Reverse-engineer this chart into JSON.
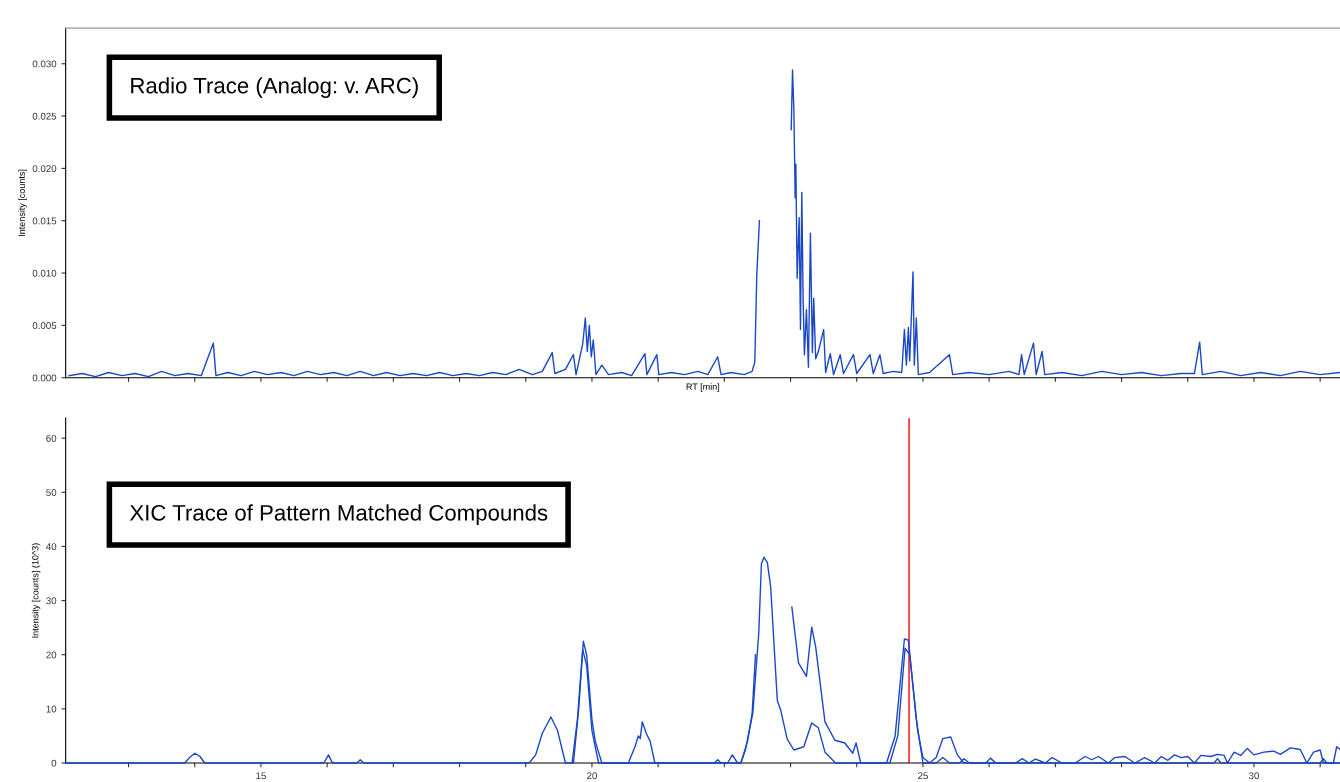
{
  "chart_data": [
    {
      "type": "line",
      "xlabel": "RT [min]",
      "ylabel": "Intensity [counts]",
      "annotations": [
        "Radio Trace (Analog: v. ARC)"
      ],
      "xlim": [
        12.05,
        31.3
      ],
      "ylim": [
        0,
        0.0334
      ],
      "tick_labels": "y",
      "grid": false,
      "legend": false,
      "xticks": [
        13,
        14,
        15,
        16,
        17,
        18,
        19,
        20,
        21,
        22,
        23,
        24,
        25,
        26,
        27,
        28,
        29,
        30,
        31
      ],
      "yticks": [
        {
          "value": 0,
          "label": "0.000"
        },
        {
          "value": 0.005,
          "label": "0.005"
        },
        {
          "value": 0.01,
          "label": "0.010"
        },
        {
          "value": 0.015,
          "label": "0.015"
        },
        {
          "value": 0.02,
          "label": "0.020"
        },
        {
          "value": 0.025,
          "label": "0.025"
        },
        {
          "value": 0.03,
          "label": "0.030"
        }
      ],
      "series": [
        {
          "color": "#1a47c6",
          "x": [
            12.1,
            12.3,
            12.5,
            12.7,
            12.9,
            13.1,
            13.3,
            13.5,
            13.7,
            13.9,
            14.1,
            14.28,
            14.32,
            14.5,
            14.7,
            14.9,
            15.1,
            15.3,
            15.5,
            15.7,
            15.9,
            16.1,
            16.3,
            16.5,
            16.7,
            16.9,
            17.1,
            17.3,
            17.5,
            17.7,
            17.9,
            18.1,
            18.3,
            18.5,
            18.7,
            18.9,
            19.1,
            19.25,
            19.4,
            19.44,
            19.6,
            19.72,
            19.76,
            19.86,
            19.9,
            19.93,
            19.96,
            19.99,
            20.02,
            20.06,
            20.15,
            20.25,
            20.45,
            20.6,
            20.8,
            20.83,
            20.98,
            21.01,
            21.2,
            21.4,
            21.6,
            21.75,
            21.9,
            21.95,
            22.1,
            22.3,
            22.42,
            22.46,
            22.49,
            22.53,
            22.56,
            23.0,
            23.01,
            23.03,
            23.05,
            23.07,
            23.08,
            23.1,
            23.13,
            23.15,
            23.17,
            23.19,
            23.21,
            23.24,
            23.27,
            23.3,
            23.33,
            23.35,
            23.38,
            23.42,
            23.5,
            23.53,
            23.6,
            23.65,
            23.75,
            23.8,
            23.95,
            24.0,
            24.2,
            24.25,
            24.35,
            24.4,
            24.55,
            24.68,
            24.72,
            24.75,
            24.78,
            24.8,
            24.85,
            24.87,
            24.9,
            24.93,
            25.1,
            25.4,
            25.45,
            25.7,
            26.0,
            26.3,
            26.45,
            26.49,
            26.53,
            26.67,
            26.71,
            26.8,
            26.84,
            27.1,
            27.4,
            27.7,
            28.0,
            28.3,
            28.6,
            28.9,
            29.1,
            29.18,
            29.22,
            29.5,
            29.8,
            30.1,
            30.4,
            30.7,
            31.0,
            31.3
          ],
          "values": [
            0.0002,
            0.0004,
            0.0001,
            0.0005,
            0.0002,
            0.0004,
            0.0001,
            0.0006,
            0.0002,
            0.0004,
            0.0002,
            0.0033,
            0.0002,
            0.0005,
            0.0002,
            0.0006,
            0.0003,
            0.0005,
            0.0002,
            0.0006,
            0.0003,
            0.0005,
            0.0002,
            0.0006,
            0.0002,
            0.0005,
            0.0002,
            0.0004,
            0.0002,
            0.0005,
            0.0002,
            0.0004,
            0.0002,
            0.0005,
            0.0003,
            0.0008,
            0.0003,
            0.0006,
            0.0024,
            0.0004,
            0.0008,
            0.0022,
            0.0003,
            0.0032,
            0.0057,
            0.0025,
            0.005,
            0.002,
            0.0036,
            0.0003,
            0.0012,
            0.0003,
            0.0005,
            0.0002,
            0.0023,
            0.0003,
            0.0022,
            0.0003,
            0.0005,
            0.0003,
            0.0006,
            0.0003,
            0.002,
            0.0003,
            0.0005,
            0.0003,
            0.0006,
            0.0015,
            0.0098,
            0.015,
            null,
            null,
            0.0237,
            0.0294,
            0.0256,
            0.0172,
            0.0204,
            0.0095,
            0.0153,
            0.0046,
            0.0177,
            0.0075,
            0.0022,
            0.0065,
            0.001,
            0.0138,
            0.0024,
            0.0076,
            0.0018,
            0.0025,
            0.0046,
            0.0005,
            0.0023,
            0.0003,
            0.0022,
            0.0004,
            0.0022,
            0.0004,
            0.0022,
            0.0004,
            0.0022,
            0.0004,
            0.0006,
            0.0005,
            0.0046,
            0.0012,
            0.0048,
            0.0016,
            0.0101,
            0.0012,
            0.0057,
            0.0003,
            0.0005,
            0.0022,
            0.0003,
            0.0005,
            0.0003,
            0.0006,
            0.0003,
            0.0022,
            0.0003,
            0.0033,
            0.0003,
            0.0025,
            0.0003,
            0.0005,
            0.0002,
            0.0006,
            0.0003,
            0.0005,
            0.0002,
            0.0004,
            0.0004,
            0.0034,
            0.0003,
            0.0006,
            0.0002,
            0.0005,
            0.0002,
            0.0006,
            0.0003,
            0.0005
          ]
        }
      ]
    },
    {
      "type": "line",
      "ylabel": "Intensity [counts] (10^3)",
      "annotations": [
        "XIC Trace of Pattern Matched Compounds"
      ],
      "xlim": [
        12.05,
        31.3
      ],
      "ylim": [
        0,
        63.7
      ],
      "grid": false,
      "legend": false,
      "xticks": [
        {
          "value": 13,
          "label": null
        },
        {
          "value": 14,
          "label": null
        },
        15,
        {
          "value": 16,
          "label": null
        },
        {
          "value": 17,
          "label": null
        },
        {
          "value": 18,
          "label": null
        },
        {
          "value": 19,
          "label": null
        },
        20,
        {
          "value": 21,
          "label": null
        },
        {
          "value": 22,
          "label": null
        },
        {
          "value": 23,
          "label": null
        },
        {
          "value": 24,
          "label": null
        },
        25,
        {
          "value": 26,
          "label": null
        },
        {
          "value": 27,
          "label": null
        },
        {
          "value": 28,
          "label": null
        },
        {
          "value": 29,
          "label": null
        },
        30,
        {
          "value": 31,
          "label": null
        }
      ],
      "yticks": [
        0,
        10,
        20,
        30,
        40,
        50,
        60
      ],
      "ref_lines": [
        {
          "axis": "x",
          "value": 24.79,
          "color": "#ff0000"
        }
      ],
      "series": [
        {
          "color": "#1a47c6",
          "x": [
            12.05,
            13.85,
            13.92,
            14.0,
            14.08,
            14.15,
            15.95,
            16.02,
            16.08,
            16.45,
            16.5,
            16.55,
            19.05,
            19.15,
            19.25,
            19.38,
            19.48,
            19.6,
            19.72,
            19.8,
            19.87,
            19.92,
            20.0,
            20.05,
            20.15,
            20.55,
            20.65,
            20.7,
            20.73,
            20.76,
            20.82,
            20.88,
            20.95,
            21.85,
            21.9,
            21.95,
            22.05,
            22.12,
            22.2,
            22.25,
            22.35,
            22.42,
            22.47,
            22.52,
            22.96,
            23.02,
            23.12,
            23.24,
            23.32,
            23.38,
            23.52,
            23.67,
            23.82,
            23.94,
            23.99,
            24.06,
            24.45,
            24.58,
            24.72,
            24.78,
            24.9,
            25.0,
            25.2,
            25.3,
            25.4,
            25.55,
            25.62,
            25.7,
            25.95,
            26.02,
            26.1,
            26.4,
            26.5,
            26.6,
            26.7,
            26.85,
            26.95,
            27.1,
            27.3,
            27.45,
            27.55,
            27.65,
            27.8,
            27.9,
            28.05,
            28.2,
            28.35,
            28.5,
            28.6,
            28.7,
            28.8,
            28.9,
            29.0,
            29.1,
            29.2,
            29.35,
            29.45,
            29.55,
            29.6,
            29.7,
            29.8,
            29.9,
            30.0,
            30.15,
            30.3,
            30.4,
            30.55,
            30.7,
            30.8,
            30.9,
            31.0,
            31.05,
            31.2,
            31.25,
            31.3
          ],
          "values": [
            0,
            0,
            1.0,
            1.8,
            1.2,
            0,
            0,
            1.5,
            0,
            0,
            0.6,
            0,
            0,
            1.5,
            5.5,
            8.5,
            6,
            0,
            0,
            10,
            22.5,
            20,
            8,
            4,
            0,
            0,
            3,
            5,
            4.5,
            7.6,
            5.5,
            4,
            0,
            0,
            0.6,
            0,
            0,
            1.5,
            0,
            0,
            4,
            9.2,
            20,
            null,
            null,
            28.8,
            18.5,
            16,
            25.1,
            21.4,
            7.6,
            4.2,
            3.7,
            1.8,
            3.7,
            0,
            0,
            5,
            22.9,
            22.7,
            8,
            0,
            0,
            1,
            0,
            0,
            0.8,
            0,
            0,
            0.9,
            0,
            0,
            0.8,
            0,
            0.7,
            0,
            1.0,
            0,
            0,
            1.2,
            0.6,
            1.2,
            0,
            1.0,
            1.2,
            0,
            1.0,
            0,
            1.2,
            0.5,
            1.5,
            1.0,
            1.2,
            0,
            1.4,
            1.2,
            1.6,
            1.4,
            0,
            2.0,
            1.4,
            2.7,
            1.5,
            2.0,
            2.2,
            1.6,
            2.8,
            2.5,
            0,
            2.0,
            2.4,
            0,
            0,
            3.0,
            2.5
          ]
        },
        {
          "color": "#1a47c6",
          "x": [
            19.7,
            19.78,
            19.86,
            19.92,
            20.0,
            20.1,
            22.25,
            22.32,
            22.43,
            22.52,
            22.56,
            22.6,
            22.65,
            22.7,
            22.8,
            22.85,
            22.95,
            23.05,
            23.2,
            23.32,
            23.42,
            23.52,
            23.68,
            24.5,
            24.62,
            24.73,
            24.8,
            24.92,
            25.0,
            25.1,
            25.2,
            25.3,
            25.42,
            25.52,
            25.62,
            29.4,
            29.45,
            29.5,
            31.0,
            31.05,
            31.1,
            31.3
          ],
          "values": [
            0,
            8,
            21,
            18,
            6,
            0,
            0,
            2.5,
            9.2,
            24,
            36.8,
            38,
            37,
            32.5,
            11.6,
            9.8,
            4.4,
            2.4,
            3,
            7.4,
            6.5,
            2.0,
            0,
            0,
            5,
            21.2,
            20,
            6,
            1,
            0,
            1.0,
            4.5,
            4.8,
            1.5,
            0,
            0,
            0.8,
            0,
            0,
            0.8,
            0,
            0
          ]
        }
      ]
    }
  ]
}
